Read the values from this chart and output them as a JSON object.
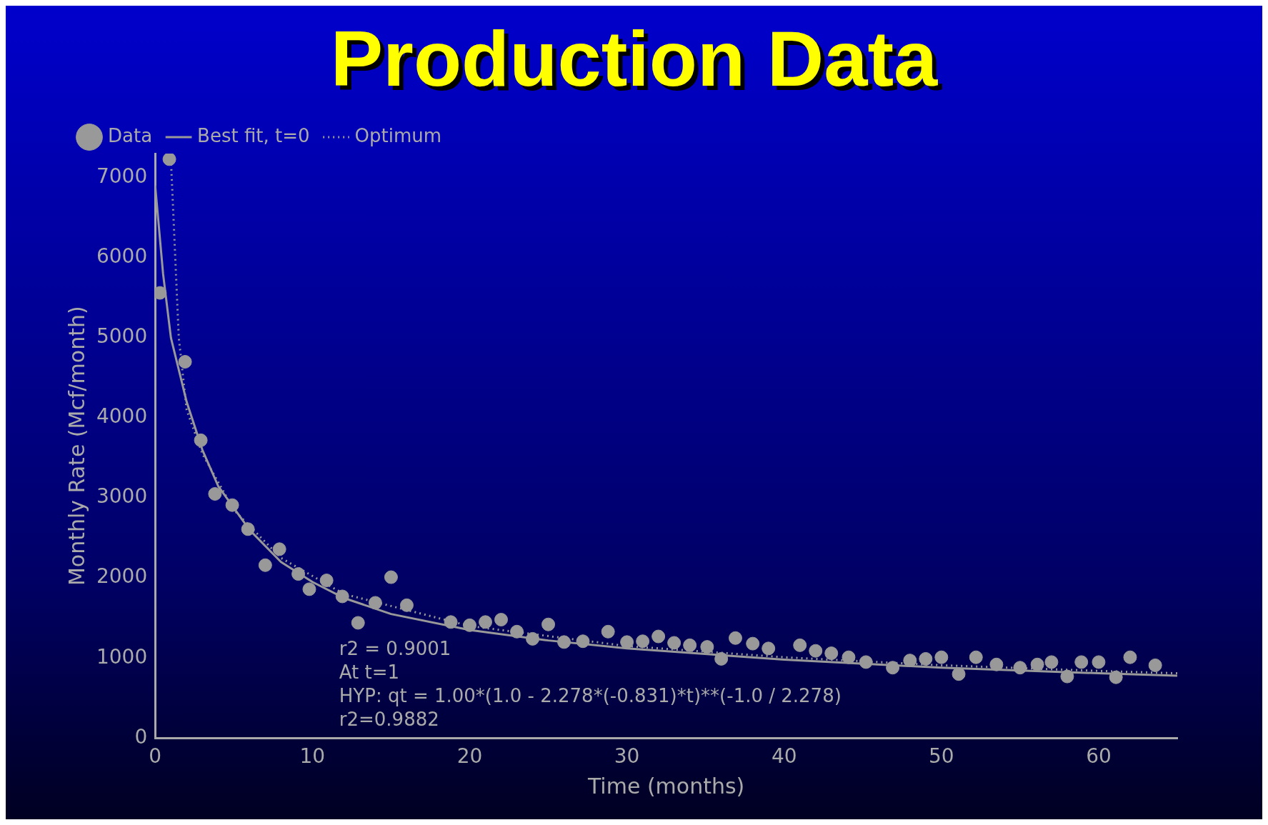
{
  "chart_data": {
    "type": "scatter",
    "title": "Production Data",
    "xlabel": "Time (months)",
    "ylabel": "Monthly Rate (Mcf/month)",
    "xlim": [
      0,
      65
    ],
    "xticks": [
      0,
      10,
      20,
      30,
      40,
      50,
      60
    ],
    "ylim": [
      0,
      7300
    ],
    "yticks": [
      0,
      1000,
      2000,
      3000,
      4000,
      5000,
      6000,
      7000
    ],
    "legend": "top left",
    "grid": false,
    "series": [
      {
        "name": "Data",
        "type": "scatter",
        "marker": "circle",
        "color": "#999999",
        "x": [
          0.9,
          0.3,
          1.9,
          2.9,
          3.8,
          4.9,
          5.9,
          7.0,
          7.9,
          9.1,
          9.8,
          10.9,
          11.9,
          12.9,
          14.0,
          15.0,
          16.0,
          18.8,
          20,
          21,
          22,
          23,
          24,
          25,
          26,
          27.2,
          28.8,
          30,
          31,
          32,
          33,
          34,
          35.1,
          36,
          36.9,
          38,
          39,
          41,
          42,
          43,
          44.1,
          45.2,
          46.9,
          48,
          49,
          50,
          51.1,
          52.2,
          53.5,
          55,
          56.1,
          57,
          58,
          58.9,
          60,
          61.1,
          62,
          63.6
        ],
        "values": [
          7230,
          5560,
          4700,
          3720,
          3050,
          2910,
          2610,
          2160,
          2360,
          2050,
          1860,
          1970,
          1770,
          1440,
          1690,
          2010,
          1660,
          1450,
          1410,
          1450,
          1480,
          1330,
          1240,
          1420,
          1200,
          1210,
          1330,
          1200,
          1210,
          1270,
          1190,
          1160,
          1140,
          990,
          1250,
          1180,
          1120,
          1160,
          1090,
          1060,
          1010,
          950,
          880,
          970,
          990,
          1010,
          800,
          1010,
          920,
          880,
          920,
          950,
          770,
          950,
          950,
          760,
          1010,
          910
        ]
      },
      {
        "name": "Best fit, t=0",
        "type": "line",
        "line_style": "solid",
        "color": "#999999",
        "x": [
          0,
          0.5,
          1,
          2,
          3,
          4,
          6,
          8,
          10,
          12,
          15,
          20,
          25,
          30,
          40,
          50,
          60,
          65
        ],
        "values": [
          6900,
          5800,
          5000,
          4200,
          3600,
          3150,
          2600,
          2200,
          1950,
          1750,
          1550,
          1350,
          1220,
          1120,
          980,
          880,
          810,
          780
        ]
      },
      {
        "name": "Optimum",
        "type": "line",
        "line_style": "dotted",
        "color": "#999999",
        "x": [
          1,
          1.5,
          2,
          3,
          5,
          8,
          12,
          20,
          30,
          40,
          50,
          60,
          65
        ],
        "values": [
          7230,
          5000,
          4100,
          3550,
          2850,
          2250,
          1800,
          1400,
          1150,
          1010,
          910,
          840,
          810
        ]
      }
    ],
    "annotations": [
      "r2 = 0.9001",
      "At t=1",
      "HYP: qt = 1.00*(1.0 - 2.278*(-0.831)*t)**(-1.0 / 2.278)",
      "r2=0.9882"
    ]
  }
}
